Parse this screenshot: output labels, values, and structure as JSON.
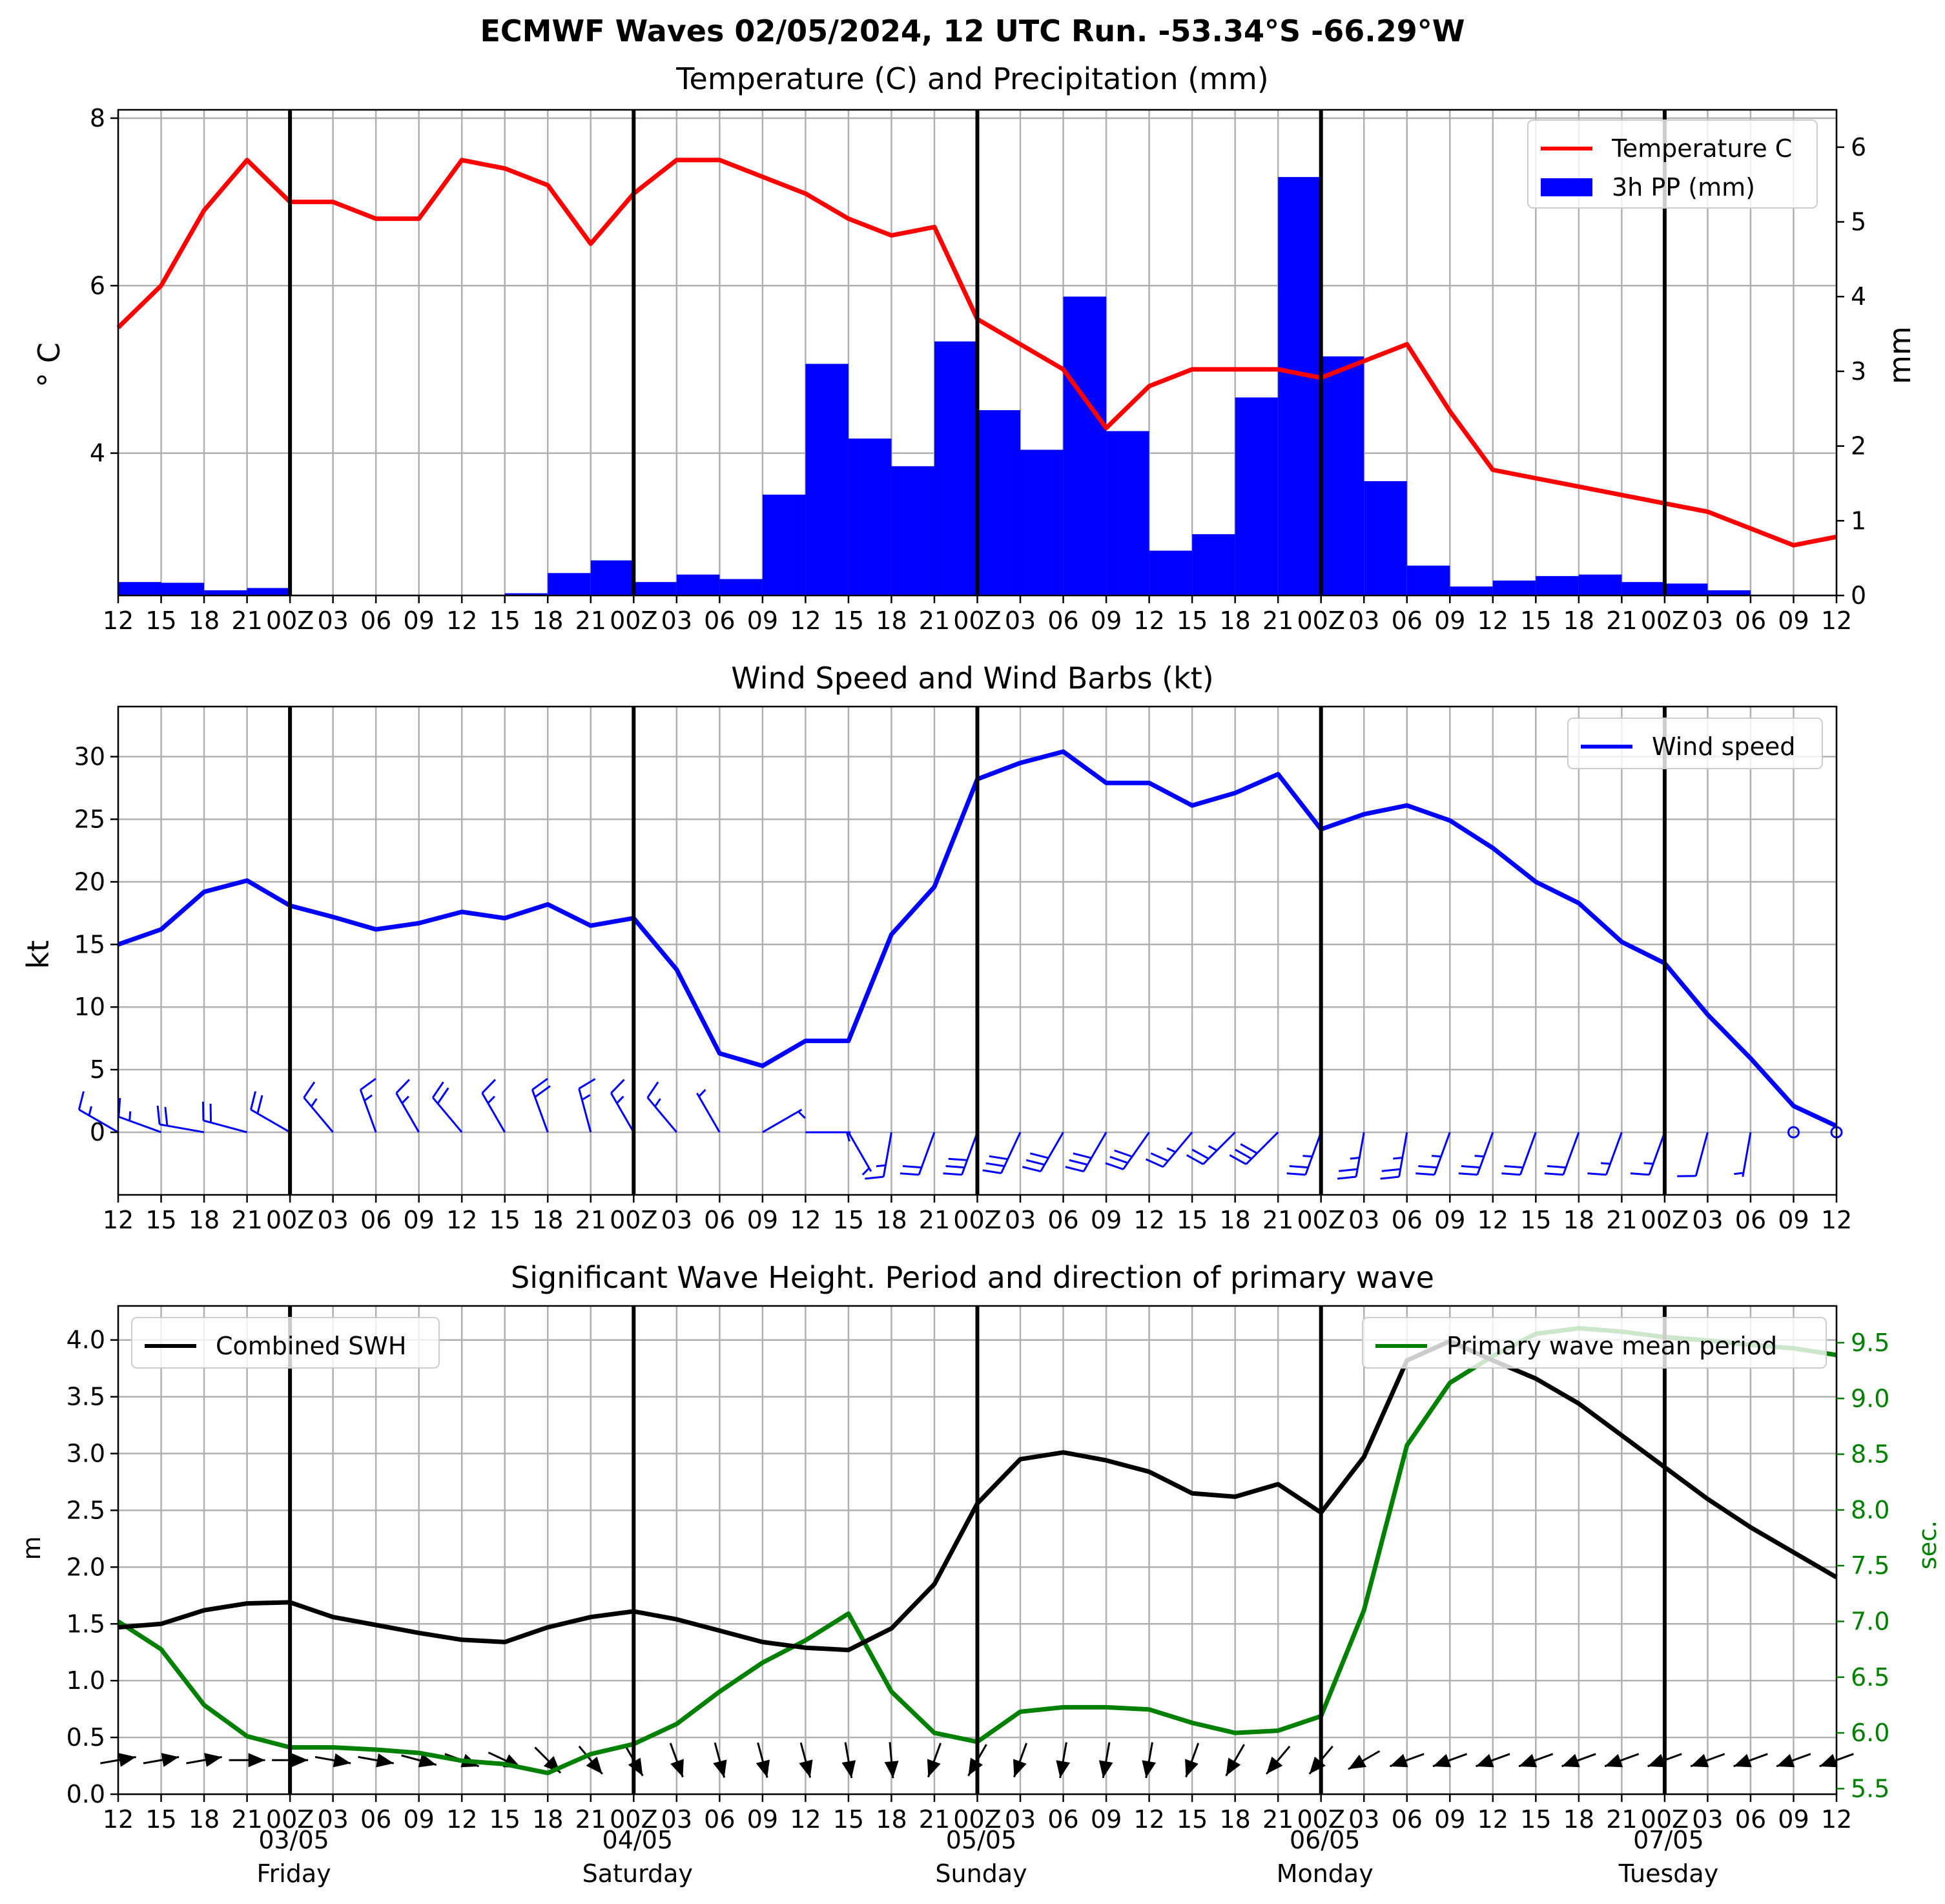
{
  "main_title": "ECMWF Waves 02/05/2024, 12 UTC Run. -53.34°S -66.29°W",
  "panels": {
    "p1": {
      "title": "Temperature (C) and Precipitation (mm)",
      "ylabel_left": "$^\\circ$C",
      "ylabel_left_display": "° C",
      "ylabel_right": "mm"
    },
    "p2": {
      "title": "Wind Speed and Wind Barbs (kt)",
      "ylabel": "kt"
    },
    "p3": {
      "title": "Significant Wave Height. Period and direction of primary wave",
      "ylabel_left": "m",
      "ylabel_right": "sec."
    }
  },
  "x_tick_labels": [
    "12",
    "15",
    "18",
    "21",
    "00Z",
    "03",
    "06",
    "09",
    "12",
    "15",
    "18",
    "21",
    "00Z",
    "03",
    "06",
    "09",
    "12",
    "15",
    "18",
    "21",
    "00Z",
    "03",
    "06",
    "09",
    "12",
    "15",
    "18",
    "21",
    "00Z",
    "03",
    "06",
    "09",
    "12",
    "15",
    "18",
    "21",
    "00Z",
    "03",
    "06",
    "09",
    "12"
  ],
  "days": [
    {
      "date": "03/05",
      "name": "Friday"
    },
    {
      "date": "04/05",
      "name": "Saturday"
    },
    {
      "date": "05/05",
      "name": "Sunday"
    },
    {
      "date": "06/05",
      "name": "Monday"
    },
    {
      "date": "07/05",
      "name": "Tuesday"
    }
  ],
  "colors": {
    "temperature": "#ff0000",
    "precip": "#0000ff",
    "wind": "#0000ff",
    "swh": "#000000",
    "period": "#008000",
    "grid": "#b0b0b0"
  },
  "chart_data": [
    {
      "type": "line",
      "title": "Temperature (C) and Precipitation (mm)",
      "ylabel": "°C",
      "ylim": [
        2.3,
        8.1
      ],
      "yticks": [
        4,
        6,
        8
      ],
      "grid": true,
      "legend_position": "top-right",
      "series": [
        {
          "name": "Temperature C",
          "axis": "left",
          "values": [
            5.5,
            6.0,
            6.9,
            7.5,
            7.0,
            7.0,
            6.8,
            6.8,
            7.5,
            7.4,
            7.2,
            6.5,
            7.1,
            7.5,
            7.5,
            7.3,
            7.1,
            6.8,
            6.6,
            6.7,
            5.6,
            5.3,
            5.0,
            4.3,
            4.8,
            5.0,
            5.0,
            5.0,
            4.9,
            5.1,
            5.3,
            4.5,
            3.8,
            3.7,
            3.6,
            3.5,
            3.4,
            3.3,
            3.1,
            2.9,
            3.0
          ]
        }
      ]
    },
    {
      "type": "bar",
      "ylabel": "mm",
      "ylim": [
        0,
        6.5
      ],
      "yticks": [
        0,
        1,
        2,
        3,
        4,
        5,
        6
      ],
      "series": [
        {
          "name": "3h PP (mm)",
          "axis": "right",
          "values": [
            0.18,
            0.17,
            0.07,
            0.1,
            0.01,
            0.01,
            0.01,
            0.01,
            0.01,
            0.03,
            0.3,
            0.47,
            0.18,
            0.28,
            0.22,
            1.35,
            3.1,
            2.1,
            1.73,
            3.4,
            2.48,
            1.95,
            4.0,
            2.2,
            0.6,
            0.82,
            2.65,
            5.6,
            3.2,
            1.53,
            0.4,
            0.12,
            0.2,
            0.26,
            0.28,
            0.18,
            0.16,
            0.07,
            0.01,
            0.01
          ]
        }
      ]
    },
    {
      "type": "line",
      "title": "Wind Speed and Wind Barbs (kt)",
      "ylabel": "kt",
      "ylim": [
        -5,
        34
      ],
      "yticks": [
        0,
        5,
        10,
        15,
        20,
        25,
        30
      ],
      "grid": true,
      "legend_position": "top-right",
      "series": [
        {
          "name": "Wind speed",
          "values": [
            15,
            16.2,
            19.2,
            20.1,
            18.1,
            17.2,
            16.2,
            16.7,
            17.6,
            17.1,
            18.2,
            16.5,
            17.1,
            13,
            6.3,
            5.3,
            7.3,
            7.3,
            15.8,
            19.6,
            28.2,
            29.5,
            30.4,
            27.9,
            27.9,
            26.1,
            27.1,
            28.6,
            24.2,
            25.4,
            26.1,
            24.9,
            22.7,
            20,
            18.3,
            15.2,
            13.5,
            9.4,
            5.9,
            2.1,
            0.5
          ]
        }
      ],
      "barb_direction_deg": [
        300,
        290,
        280,
        285,
        300,
        320,
        340,
        330,
        320,
        330,
        340,
        345,
        330,
        320,
        330,
        60,
        90,
        150,
        190,
        200,
        200,
        205,
        210,
        210,
        215,
        220,
        225,
        225,
        200,
        190,
        190,
        200,
        200,
        200,
        200,
        200,
        200,
        195,
        190,
        0,
        0
      ]
    },
    {
      "type": "line",
      "title": "Significant Wave Height. Period and direction of primary wave",
      "ylabel": "m",
      "ylim": [
        0,
        4.3
      ],
      "yticks": [
        0.0,
        0.5,
        1.0,
        1.5,
        2.0,
        2.5,
        3.0,
        3.5,
        4.0
      ],
      "y2label": "sec.",
      "y2lim": [
        5.45,
        9.83
      ],
      "y2ticks": [
        5.5,
        6.0,
        6.5,
        7.0,
        7.5,
        8.0,
        8.5,
        9.0,
        9.5
      ],
      "grid": true,
      "series": [
        {
          "name": "Combined SWH",
          "axis": "left",
          "values": [
            1.47,
            1.5,
            1.62,
            1.68,
            1.69,
            1.56,
            1.49,
            1.42,
            1.36,
            1.34,
            1.47,
            1.56,
            1.61,
            1.54,
            1.44,
            1.34,
            1.29,
            1.27,
            1.46,
            1.85,
            2.56,
            2.95,
            3.01,
            2.94,
            2.84,
            2.65,
            2.62,
            2.73,
            2.48,
            2.97,
            3.82,
            3.99,
            3.82,
            3.66,
            3.44,
            3.16,
            2.88,
            2.6,
            2.35,
            2.13,
            1.91
          ]
        },
        {
          "name": "Primary wave mean period",
          "axis": "right",
          "values": [
            7.0,
            6.75,
            6.25,
            5.97,
            5.87,
            5.87,
            5.85,
            5.82,
            5.75,
            5.72,
            5.64,
            5.81,
            5.9,
            6.08,
            6.37,
            6.63,
            6.83,
            7.07,
            6.37,
            6.0,
            5.92,
            6.19,
            6.23,
            6.23,
            6.21,
            6.09,
            6.0,
            6.02,
            6.15,
            7.1,
            8.58,
            9.14,
            9.38,
            9.58,
            9.63,
            9.6,
            9.55,
            9.52,
            9.48,
            9.45,
            9.39
          ]
        }
      ],
      "wave_direction_deg": [
        260,
        260,
        260,
        270,
        270,
        280,
        280,
        285,
        290,
        295,
        315,
        320,
        330,
        340,
        345,
        345,
        345,
        350,
        355,
        20,
        30,
        20,
        10,
        10,
        10,
        20,
        30,
        40,
        40,
        60,
        70,
        70,
        70,
        70,
        70,
        70,
        70,
        70,
        70,
        70,
        70
      ]
    }
  ]
}
